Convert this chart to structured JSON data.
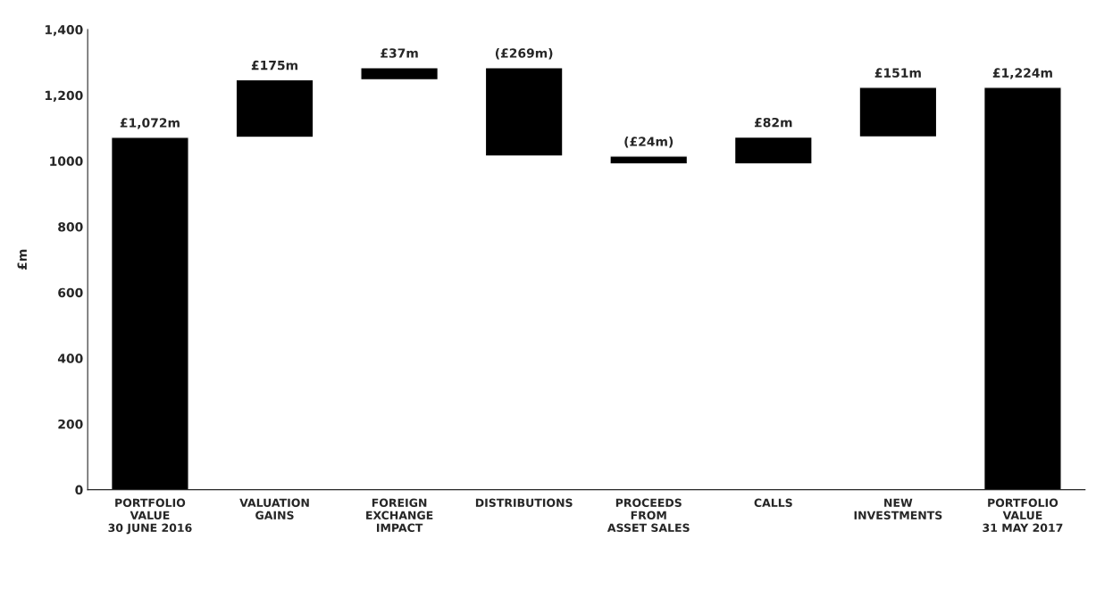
{
  "chart_data": {
    "type": "bar",
    "ylabel": "£m",
    "categories": [
      "PORTFOLIO\nVALUE\n30 JUNE 2016",
      "VALUATION\nGAINS",
      "FOREIGN\nEXCHANGE\nIMPACT",
      "DISTRIBUTIONS",
      "PROCEEDS\nFROM\nASSET SALES",
      "CALLS",
      "NEW\nINVESTMENTS",
      "PORTFOLIO\nVALUE\n31 MAY 2017"
    ],
    "values": [
      1072,
      175,
      37,
      -269,
      -24,
      82,
      151,
      1224
    ],
    "base": [
      0,
      1072,
      1247,
      1284,
      1015,
      991,
      1073,
      0
    ],
    "value_labels": [
      "£1,072m",
      "£175m",
      "£37m",
      "(£269m)",
      "(£24m)",
      "£82m",
      "£151m",
      "£1,224m"
    ],
    "color": "#000000",
    "ylim": [
      0,
      1400
    ],
    "yticks": [
      0,
      200,
      400,
      600,
      800,
      1000,
      {
        "value": 1200,
        "label": "1,200"
      },
      {
        "value": 1400,
        "label": "1,400"
      }
    ],
    "grid": false
  }
}
